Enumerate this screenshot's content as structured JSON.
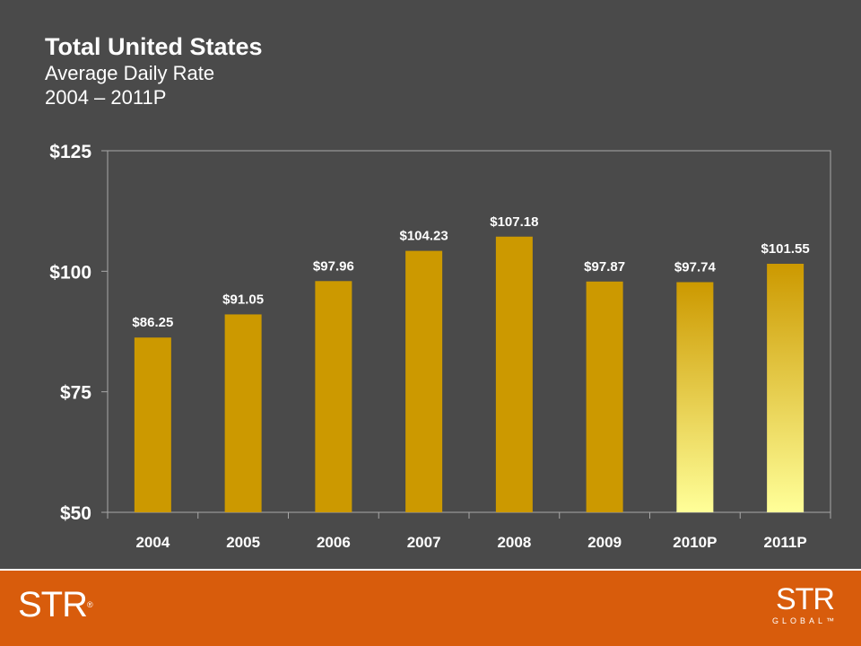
{
  "header": {
    "title": "Total United States",
    "subtitle_line1": "Average Daily Rate",
    "subtitle_line2": "2004 – 2011P"
  },
  "footer": {
    "logo_left": "STR",
    "logo_left_mark": "®",
    "logo_right_main": "STR",
    "logo_right_sub": "GLOBAL™"
  },
  "colors": {
    "background": "#4a4a4a",
    "plot_background": "#4a4a4a",
    "bar_actual": "#cc9900",
    "bar_projected_top": "#cc9900",
    "bar_projected_bottom": "#ffff99",
    "footer": "#d85c0c",
    "text": "#ffffff"
  },
  "chart_data": {
    "type": "bar",
    "title": "Total United States",
    "subtitle": "Average Daily Rate 2004 – 2011P",
    "categories": [
      "2004",
      "2005",
      "2006",
      "2007",
      "2008",
      "2009",
      "2010P",
      "2011P"
    ],
    "values": [
      86.25,
      91.05,
      97.96,
      104.23,
      107.18,
      97.87,
      97.74,
      101.55
    ],
    "value_labels": [
      "$86.25",
      "$91.05",
      "$97.96",
      "$104.23",
      "$107.18",
      "$97.87",
      "$97.74",
      "$101.55"
    ],
    "projected": [
      false,
      false,
      false,
      false,
      false,
      false,
      true,
      true
    ],
    "ylim": [
      50,
      125
    ],
    "yticks": [
      50,
      75,
      100,
      125
    ],
    "ytick_labels": [
      "$50",
      "$75",
      "$100",
      "$125"
    ],
    "xlabel": "",
    "ylabel": "",
    "grid": false,
    "legend": "none"
  }
}
